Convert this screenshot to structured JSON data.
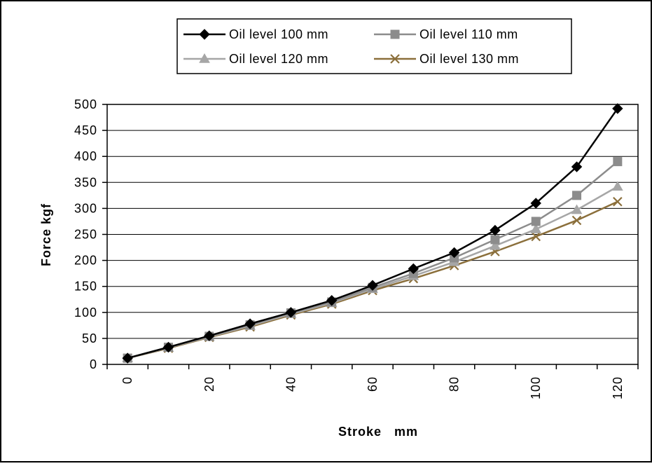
{
  "chart_data": {
    "type": "line",
    "xlabel": "Stroke   mm",
    "ylabel": "Force   kgf",
    "xlim": [
      0,
      120
    ],
    "ylim": [
      0,
      500
    ],
    "xticks": [
      0,
      20,
      40,
      60,
      80,
      100,
      120
    ],
    "yticks": [
      0,
      50,
      100,
      150,
      200,
      250,
      300,
      350,
      400,
      450,
      500
    ],
    "grid": "horizontal",
    "legend_position": "top",
    "x": [
      0,
      10,
      20,
      30,
      40,
      50,
      60,
      70,
      80,
      90,
      100,
      110,
      120
    ],
    "series": [
      {
        "name": "Oil  level  100  mm",
        "marker": "diamond",
        "color": "#000000",
        "values": [
          12,
          33,
          55,
          78,
          100,
          123,
          152,
          184,
          215,
          258,
          310,
          380,
          492
        ]
      },
      {
        "name": "Oil  level  110  mm",
        "marker": "square",
        "color": "#8c8c8c",
        "values": [
          12,
          33,
          54,
          76,
          99,
          120,
          148,
          175,
          205,
          240,
          275,
          325,
          390
        ]
      },
      {
        "name": "Oil  level  120  mm",
        "marker": "triangle",
        "color": "#a6a6a6",
        "values": [
          12,
          32,
          53,
          74,
          97,
          118,
          145,
          170,
          197,
          228,
          260,
          297,
          342
        ]
      },
      {
        "name": "Oil  level  130  mm",
        "marker": "x",
        "color": "#8b6f3b",
        "values": [
          12,
          31,
          52,
          72,
          95,
          116,
          142,
          165,
          190,
          217,
          246,
          277,
          313
        ]
      }
    ]
  }
}
